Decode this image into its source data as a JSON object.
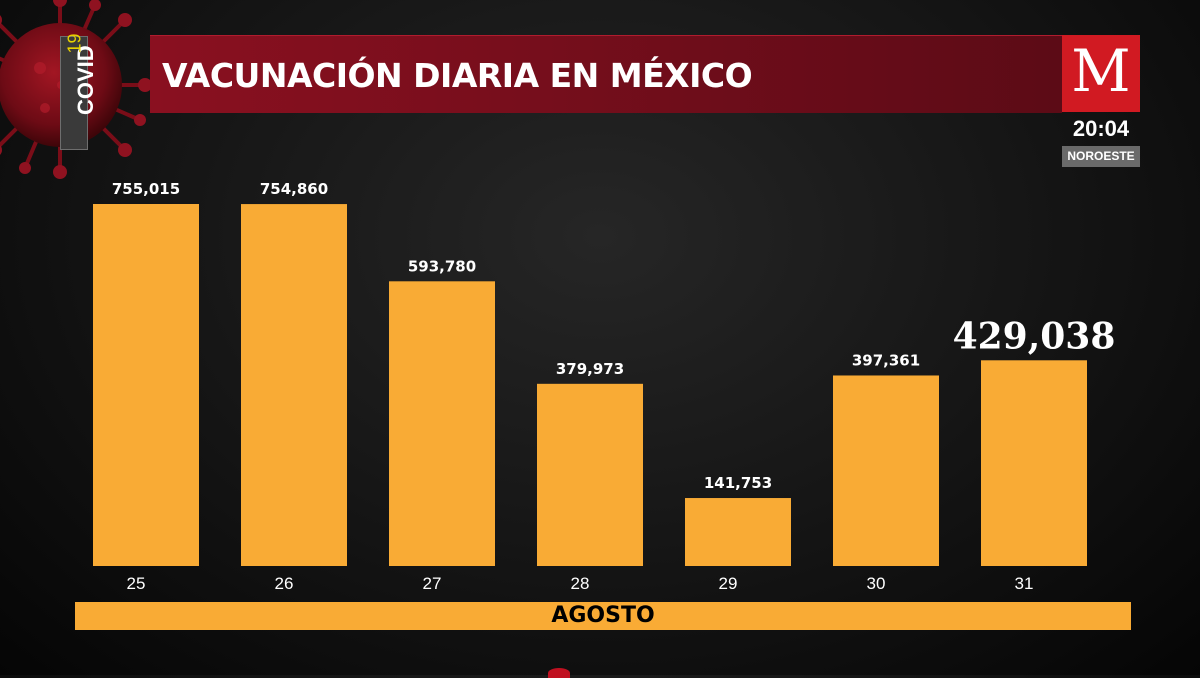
{
  "header": {
    "title": "VACUNACIÓN DIARIA EN MÉXICO",
    "covid_label": "COVID",
    "covid_number": "19",
    "logo_letter": "M",
    "time": "20:04",
    "region": "NOROESTE"
  },
  "colors": {
    "bar": "#f9ab35",
    "title_bar": "#7a0e1c",
    "logo": "#d11a22"
  },
  "chart_data": {
    "type": "bar",
    "title": "VACUNACIÓN DIARIA EN MÉXICO",
    "categories": [
      "25",
      "26",
      "27",
      "28",
      "29",
      "30",
      "31"
    ],
    "values": [
      755015,
      754860,
      593780,
      379973,
      141753,
      397361,
      429038
    ],
    "value_labels": [
      "755,015",
      "754,860",
      "593,780",
      "379,973",
      "141,753",
      "397,361",
      "429,038"
    ],
    "highlighted_index": 6,
    "xlabel": "AGOSTO",
    "ylabel": "",
    "ylim": [
      0,
      755015
    ],
    "grid": false,
    "legend": "none"
  }
}
